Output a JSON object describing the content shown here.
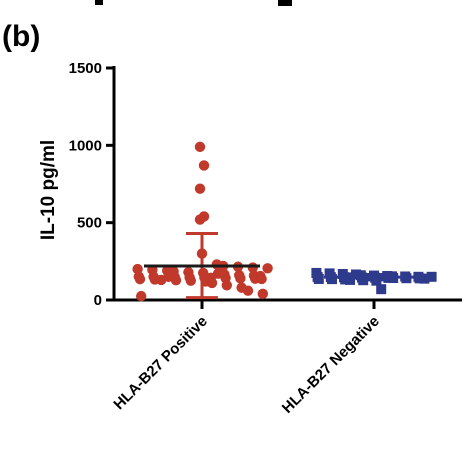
{
  "panel_label": "(b)",
  "chart_data": {
    "type": "scatter",
    "title": "",
    "xlabel": "",
    "ylabel": "IL-10 pg/ml",
    "ylim": [
      0,
      1500
    ],
    "yticks": [
      0,
      500,
      1000,
      1500
    ],
    "grid": false,
    "categories": [
      "HLA-B27 Positive",
      "HLA-B27 Negative"
    ],
    "series": [
      {
        "category": "HLA-B27 Positive",
        "color": "#c0392b",
        "marker": "circle",
        "mean": 220,
        "sd_upper": 430,
        "sd_lower": 15,
        "values": [
          990,
          870,
          720,
          540,
          520,
          300,
          230,
          220,
          215,
          210,
          205,
          200,
          195,
          190,
          185,
          180,
          175,
          170,
          165,
          160,
          158,
          155,
          152,
          150,
          150,
          148,
          146,
          145,
          143,
          142,
          140,
          138,
          136,
          135,
          133,
          130,
          128,
          125,
          120,
          110,
          95,
          80,
          60,
          40,
          25
        ]
      },
      {
        "category": "HLA-B27 Negative",
        "color": "#2e3a8c",
        "marker": "square",
        "mean": 148,
        "sd_upper": 165,
        "sd_lower": 130,
        "values": [
          175,
          172,
          168,
          165,
          160,
          158,
          155,
          153,
          152,
          150,
          150,
          149,
          148,
          147,
          146,
          145,
          144,
          143,
          142,
          141,
          140,
          138,
          136,
          135,
          133,
          130,
          128,
          125,
          70
        ]
      }
    ]
  }
}
